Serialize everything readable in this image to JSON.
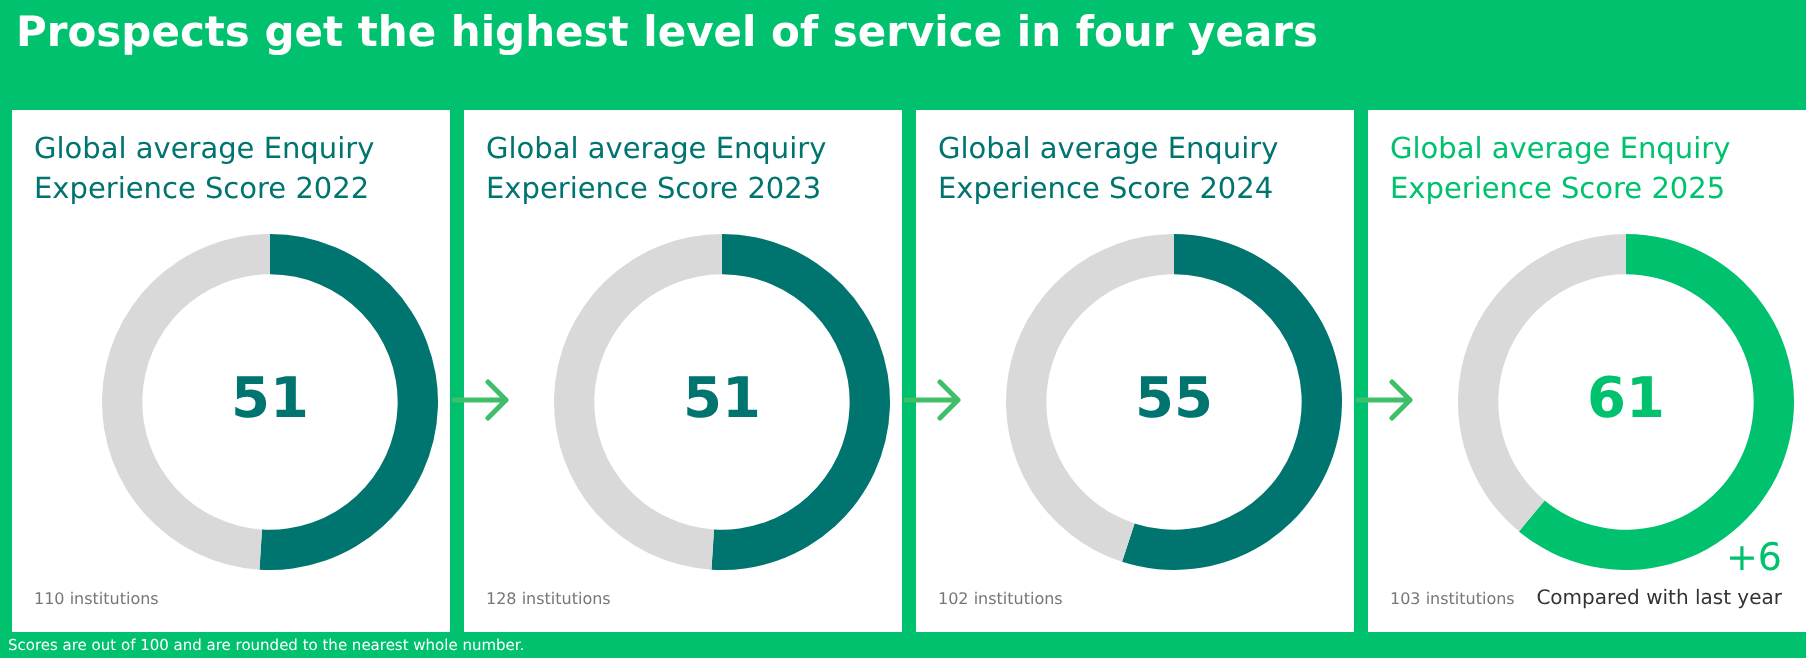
{
  "chart_data": [
    {
      "type": "other",
      "title": "Prospects get the highest level of service in four years",
      "annotations": [
        "Scores are out of 100 and are rounded to the nearest whole number."
      ]
    },
    {
      "type": "donut",
      "title": "Global average Enquiry Experience Score 2022",
      "categories": [
        null,
        null
      ],
      "values": [
        51,
        49
      ],
      "colors": [
        "#00746f",
        "#d9d9d9"
      ],
      "value_labels": [
        "51",
        null
      ],
      "legend": false,
      "annotations": [
        "110 institutions"
      ]
    },
    {
      "type": "donut",
      "title": "Global average Enquiry Experience Score 2023",
      "categories": [
        null,
        null
      ],
      "values": [
        51,
        49
      ],
      "colors": [
        "#00746f",
        "#d9d9d9"
      ],
      "value_labels": [
        "51",
        null
      ],
      "legend": false,
      "annotations": [
        "128 institutions"
      ]
    },
    {
      "type": "donut",
      "title": "Global average Enquiry Experience Score 2024",
      "categories": [
        null,
        null
      ],
      "values": [
        55,
        45
      ],
      "colors": [
        "#00746f",
        "#d9d9d9"
      ],
      "value_labels": [
        "55",
        null
      ],
      "legend": false,
      "annotations": [
        "102 institutions"
      ]
    },
    {
      "type": "donut",
      "title": "Global average Enquiry Experience Score 2025",
      "categories": [
        null,
        null
      ],
      "values": [
        61,
        39
      ],
      "colors": [
        "#00c16e",
        "#d9d9d9"
      ],
      "value_labels": [
        "61",
        null
      ],
      "legend": false,
      "annotations": [
        "103 institutions",
        "+6",
        "Compared with last year"
      ]
    }
  ]
}
